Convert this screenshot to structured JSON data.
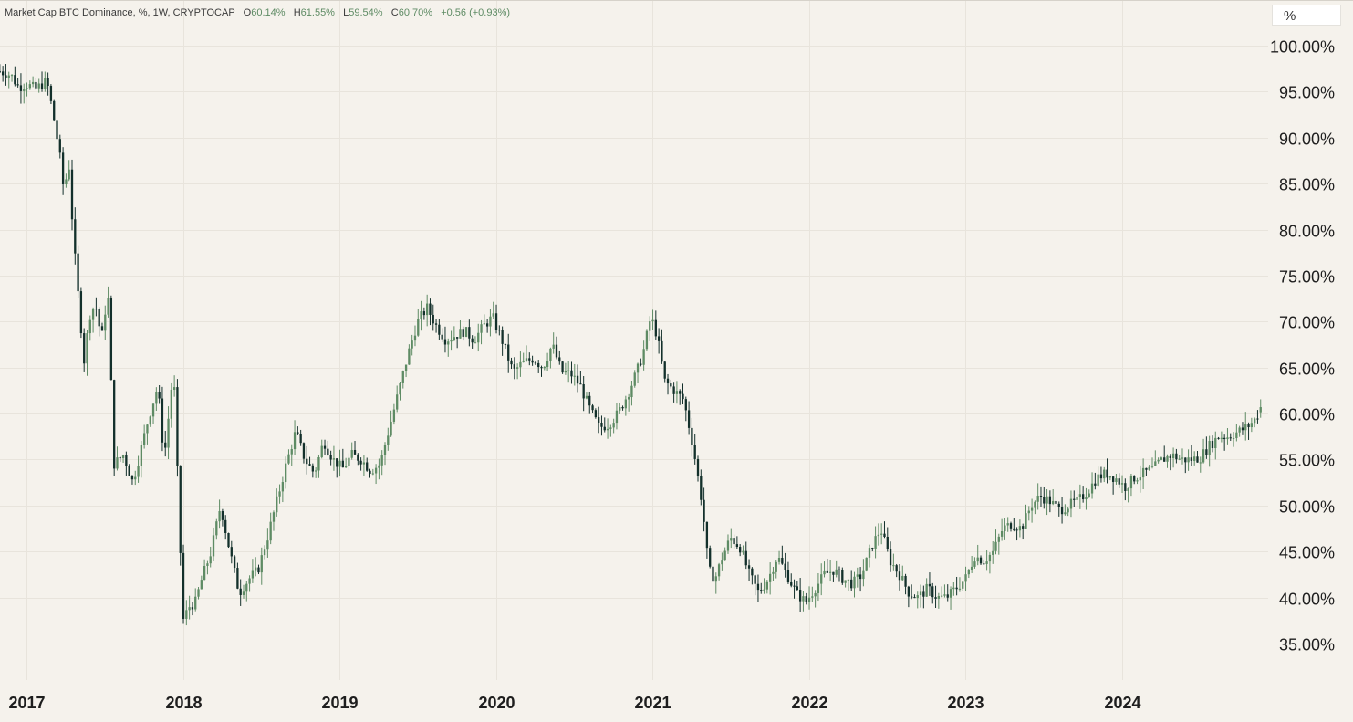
{
  "legend": {
    "symbol": "Market Cap BTC Dominance, %, 1W, CRYPTOCAP",
    "o_label": "O",
    "o_value": "60.14%",
    "h_label": "H",
    "h_value": "61.55%",
    "l_label": "L",
    "l_value": "59.54%",
    "c_label": "C",
    "c_value": "60.70%",
    "change": "+0.56 (+0.93%)"
  },
  "unit_selector": "%",
  "colors": {
    "background": "#f5f2ec",
    "grid": "#e8e4dc",
    "up": "#5e8b64",
    "down": "#13302b",
    "text": "#1e1e1e"
  },
  "chart_data": {
    "type": "candlestick",
    "series_name": "Market Cap BTC Dominance, %, 1W, CRYPTOCAP",
    "interval": "1W",
    "ylim": [
      30.5,
      104
    ],
    "y_ticks": [
      "100.00%",
      "95.00%",
      "90.00%",
      "85.00%",
      "80.00%",
      "75.00%",
      "70.00%",
      "65.00%",
      "60.00%",
      "55.00%",
      "50.00%",
      "45.00%",
      "40.00%",
      "35.00%"
    ],
    "y_tick_values": [
      100,
      95,
      90,
      85,
      80,
      75,
      70,
      65,
      60,
      55,
      50,
      45,
      40,
      35
    ],
    "x_ticks": [
      "2017",
      "2018",
      "2019",
      "2020",
      "2021",
      "2022",
      "2023",
      "2024"
    ],
    "x_tick_values": [
      2017.0,
      2018.0,
      2019.0,
      2020.0,
      2021.0,
      2022.0,
      2023.0,
      2024.0
    ],
    "xlim": [
      2016.83,
      2024.93
    ],
    "grid": true,
    "last_bar": {
      "open": 60.14,
      "high": 61.55,
      "low": 59.54,
      "close": 60.7
    },
    "close_path": [
      [
        2016.83,
        97.2
      ],
      [
        2016.9,
        96.8
      ],
      [
        2016.95,
        95.5
      ],
      [
        2017.0,
        95.8
      ],
      [
        2017.06,
        95.3
      ],
      [
        2017.13,
        96.2
      ],
      [
        2017.16,
        93.5
      ],
      [
        2017.21,
        88.5
      ],
      [
        2017.24,
        84.0
      ],
      [
        2017.27,
        87.5
      ],
      [
        2017.3,
        79.0
      ],
      [
        2017.34,
        71.0
      ],
      [
        2017.37,
        65.5
      ],
      [
        2017.4,
        70.5
      ],
      [
        2017.44,
        72.0
      ],
      [
        2017.48,
        68.0
      ],
      [
        2017.52,
        73.5
      ],
      [
        2017.56,
        54.5
      ],
      [
        2017.62,
        55.5
      ],
      [
        2017.68,
        52.5
      ],
      [
        2017.73,
        56.0
      ],
      [
        2017.78,
        59.5
      ],
      [
        2017.84,
        63.0
      ],
      [
        2017.88,
        55.0
      ],
      [
        2017.94,
        65.0
      ],
      [
        2018.0,
        37.5
      ],
      [
        2018.04,
        39.0
      ],
      [
        2018.08,
        39.5
      ],
      [
        2018.12,
        42.0
      ],
      [
        2018.18,
        45.0
      ],
      [
        2018.24,
        50.0
      ],
      [
        2018.3,
        45.0
      ],
      [
        2018.36,
        40.5
      ],
      [
        2018.42,
        42.0
      ],
      [
        2018.48,
        43.0
      ],
      [
        2018.54,
        46.5
      ],
      [
        2018.6,
        50.5
      ],
      [
        2018.66,
        54.5
      ],
      [
        2018.72,
        58.0
      ],
      [
        2018.78,
        55.0
      ],
      [
        2018.84,
        53.5
      ],
      [
        2018.9,
        57.0
      ],
      [
        2018.96,
        55.0
      ],
      [
        2019.02,
        54.0
      ],
      [
        2019.08,
        55.5
      ],
      [
        2019.14,
        55.0
      ],
      [
        2019.2,
        53.8
      ],
      [
        2019.26,
        54.5
      ],
      [
        2019.32,
        58.5
      ],
      [
        2019.38,
        62.5
      ],
      [
        2019.44,
        66.5
      ],
      [
        2019.5,
        70.0
      ],
      [
        2019.56,
        71.5
      ],
      [
        2019.62,
        69.5
      ],
      [
        2019.68,
        68.0
      ],
      [
        2019.74,
        68.5
      ],
      [
        2019.8,
        69.0
      ],
      [
        2019.86,
        68.0
      ],
      [
        2019.92,
        69.5
      ],
      [
        2019.98,
        70.5
      ],
      [
        2020.05,
        67.5
      ],
      [
        2020.11,
        64.5
      ],
      [
        2020.17,
        65.5
      ],
      [
        2020.24,
        66.0
      ],
      [
        2020.3,
        65.0
      ],
      [
        2020.36,
        67.5
      ],
      [
        2020.42,
        64.5
      ],
      [
        2020.48,
        64.3
      ],
      [
        2020.54,
        63.0
      ],
      [
        2020.6,
        60.5
      ],
      [
        2020.66,
        58.5
      ],
      [
        2020.72,
        58.8
      ],
      [
        2020.78,
        60.0
      ],
      [
        2020.84,
        62.0
      ],
      [
        2020.9,
        64.5
      ],
      [
        2020.94,
        66.5
      ],
      [
        2020.99,
        70.5
      ],
      [
        2021.03,
        68.5
      ],
      [
        2021.08,
        63.5
      ],
      [
        2021.14,
        62.5
      ],
      [
        2021.2,
        61.5
      ],
      [
        2021.26,
        56.5
      ],
      [
        2021.32,
        50.0
      ],
      [
        2021.36,
        43.0
      ],
      [
        2021.4,
        42.0
      ],
      [
        2021.45,
        44.5
      ],
      [
        2021.5,
        46.5
      ],
      [
        2021.56,
        45.5
      ],
      [
        2021.62,
        42.5
      ],
      [
        2021.68,
        40.5
      ],
      [
        2021.74,
        42.0
      ],
      [
        2021.8,
        44.5
      ],
      [
        2021.86,
        42.5
      ],
      [
        2021.92,
        40.5
      ],
      [
        2021.98,
        39.5
      ],
      [
        2022.04,
        41.0
      ],
      [
        2022.1,
        42.5
      ],
      [
        2022.16,
        43.0
      ],
      [
        2022.22,
        42.0
      ],
      [
        2022.28,
        41.5
      ],
      [
        2022.34,
        42.5
      ],
      [
        2022.4,
        45.5
      ],
      [
        2022.46,
        47.5
      ],
      [
        2022.52,
        44.0
      ],
      [
        2022.58,
        42.5
      ],
      [
        2022.64,
        40.5
      ],
      [
        2022.7,
        40.0
      ],
      [
        2022.76,
        41.0
      ],
      [
        2022.82,
        40.0
      ],
      [
        2022.88,
        40.0
      ],
      [
        2022.94,
        41.0
      ],
      [
        2023.0,
        42.0
      ],
      [
        2023.06,
        44.5
      ],
      [
        2023.12,
        44.0
      ],
      [
        2023.18,
        45.0
      ],
      [
        2023.24,
        47.5
      ],
      [
        2023.3,
        48.0
      ],
      [
        2023.36,
        47.5
      ],
      [
        2023.42,
        50.0
      ],
      [
        2023.48,
        51.0
      ],
      [
        2023.54,
        50.5
      ],
      [
        2023.6,
        49.5
      ],
      [
        2023.66,
        50.0
      ],
      [
        2023.72,
        50.5
      ],
      [
        2023.78,
        51.5
      ],
      [
        2023.84,
        53.0
      ],
      [
        2023.9,
        53.5
      ],
      [
        2023.96,
        53.0
      ],
      [
        2024.02,
        52.0
      ],
      [
        2024.08,
        53.0
      ],
      [
        2024.14,
        53.5
      ],
      [
        2024.2,
        54.0
      ],
      [
        2024.26,
        55.0
      ],
      [
        2024.32,
        55.5
      ],
      [
        2024.38,
        55.0
      ],
      [
        2024.44,
        55.0
      ],
      [
        2024.5,
        55.2
      ],
      [
        2024.56,
        56.5
      ],
      [
        2024.62,
        57.5
      ],
      [
        2024.68,
        57.5
      ],
      [
        2024.74,
        58.0
      ],
      [
        2024.8,
        58.5
      ],
      [
        2024.86,
        59.5
      ],
      [
        2024.89,
        60.7
      ]
    ]
  }
}
